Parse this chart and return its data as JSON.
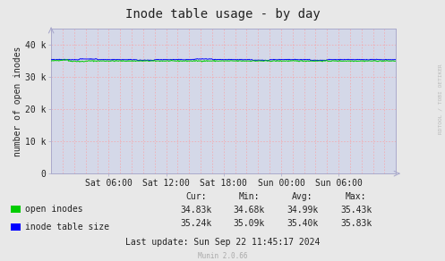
{
  "title": "Inode table usage - by day",
  "ylabel": "number of open inodes",
  "bg_color": "#e8e8e8",
  "plot_bg_color": "#d4d8e8",
  "ylim": [
    0,
    45000
  ],
  "yticks": [
    0,
    10000,
    20000,
    30000,
    40000
  ],
  "ytick_labels": [
    "0",
    "10 k",
    "20 k",
    "30 k",
    "40 k"
  ],
  "xtick_labels": [
    "Sat 06:00",
    "Sat 12:00",
    "Sat 18:00",
    "Sun 00:00",
    "Sun 06:00"
  ],
  "open_inodes_color": "#00cc00",
  "inode_table_color": "#0000ff",
  "n_points": 600,
  "legend_items": [
    {
      "label": "open inodes",
      "color": "#00cc00"
    },
    {
      "label": "inode table size",
      "color": "#0000ff"
    }
  ],
  "stats_header": [
    "Cur:",
    "Min:",
    "Avg:",
    "Max:"
  ],
  "stats_open_inodes": [
    "34.83k",
    "34.68k",
    "34.99k",
    "35.43k"
  ],
  "stats_inode_table": [
    "35.24k",
    "35.09k",
    "35.40k",
    "35.83k"
  ],
  "last_update": "Last update: Sun Sep 22 11:45:17 2024",
  "munin_version": "Munin 2.0.66",
  "watermark": "RDTOOL / TOBI OETIKER",
  "title_fontsize": 10,
  "axis_fontsize": 7,
  "legend_fontsize": 7,
  "stats_fontsize": 7
}
